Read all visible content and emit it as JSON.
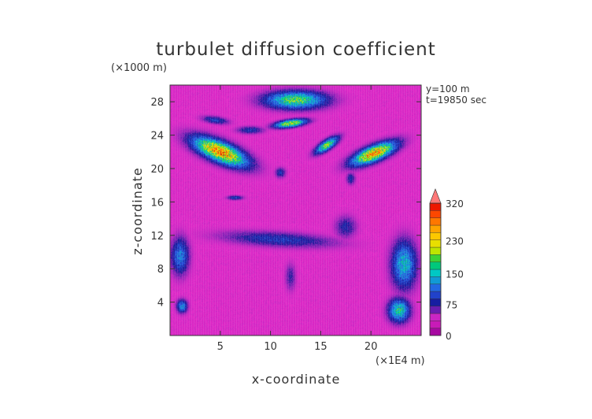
{
  "chart_data": {
    "type": "heatmap",
    "title": "turbulet diffusion coefficient",
    "xlabel": "x-coordinate",
    "ylabel": "z-coordinate",
    "x_unit": "(×1E4 m)",
    "y_unit": "(×1000 m)",
    "annotations": [
      "y=100 m",
      "t=19850 sec"
    ],
    "xlim": [
      0,
      25
    ],
    "ylim": [
      0,
      30
    ],
    "x_ticks": [
      5,
      10,
      15,
      20
    ],
    "y_ticks": [
      4,
      8,
      12,
      16,
      20,
      24,
      28
    ],
    "colorbar": {
      "levels": [
        0,
        75,
        150,
        230,
        320
      ],
      "label_values": [
        "0",
        "75",
        "150",
        "230",
        "320"
      ],
      "max_arrow": true
    },
    "background_value": 40,
    "features": [
      {
        "x": 5.0,
        "z": 22.0,
        "rx": 3.4,
        "rz": 1.3,
        "angle": -28,
        "peak": 290
      },
      {
        "x": 20.3,
        "z": 21.8,
        "rx": 2.8,
        "rz": 1.0,
        "angle": 28,
        "peak": 280
      },
      {
        "x": 15.6,
        "z": 22.8,
        "rx": 1.6,
        "rz": 0.6,
        "angle": 40,
        "peak": 210
      },
      {
        "x": 12.5,
        "z": 28.2,
        "rx": 3.5,
        "rz": 1.2,
        "angle": 0,
        "peak": 200
      },
      {
        "x": 12.0,
        "z": 25.4,
        "rx": 1.8,
        "rz": 0.5,
        "angle": 10,
        "peak": 240
      },
      {
        "x": 4.5,
        "z": 25.8,
        "rx": 1.5,
        "rz": 0.5,
        "angle": -10,
        "peak": 100
      },
      {
        "x": 8.0,
        "z": 24.6,
        "rx": 1.5,
        "rz": 0.5,
        "angle": 0,
        "peak": 95
      },
      {
        "x": 10.8,
        "z": 11.5,
        "rx": 6.5,
        "rz": 1.0,
        "angle": -4,
        "peak": 95
      },
      {
        "x": 1.0,
        "z": 9.5,
        "rx": 1.0,
        "rz": 2.5,
        "angle": 0,
        "peak": 130
      },
      {
        "x": 23.3,
        "z": 8.5,
        "rx": 1.4,
        "rz": 3.2,
        "angle": 0,
        "peak": 160
      },
      {
        "x": 22.8,
        "z": 3.0,
        "rx": 1.2,
        "rz": 1.6,
        "angle": 0,
        "peak": 180
      },
      {
        "x": 1.2,
        "z": 3.5,
        "rx": 0.6,
        "rz": 0.9,
        "angle": 0,
        "peak": 140
      },
      {
        "x": 6.5,
        "z": 16.5,
        "rx": 0.9,
        "rz": 0.3,
        "angle": 0,
        "peak": 100
      },
      {
        "x": 18.0,
        "z": 18.8,
        "rx": 0.5,
        "rz": 0.8,
        "angle": 0,
        "peak": 90
      },
      {
        "x": 11.0,
        "z": 19.5,
        "rx": 0.6,
        "rz": 0.7,
        "angle": 0,
        "peak": 90
      },
      {
        "x": 17.5,
        "z": 13.0,
        "rx": 1.2,
        "rz": 1.5,
        "angle": 0,
        "peak": 85
      },
      {
        "x": 12.0,
        "z": 7.0,
        "rx": 0.6,
        "rz": 1.8,
        "angle": 0,
        "peak": 75
      }
    ]
  }
}
